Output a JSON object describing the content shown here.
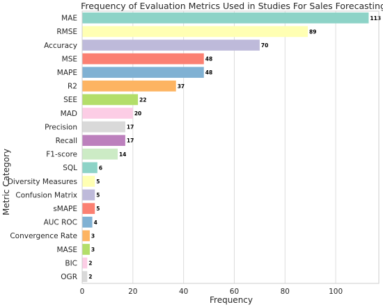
{
  "chart_data": {
    "type": "bar",
    "orientation": "horizontal",
    "title": "Frequency of Evaluation Metrics Used in Studies For Sales Forecasting",
    "xlabel": "Frequency",
    "ylabel": "Metric Category",
    "xlim": [
      0,
      117
    ],
    "xticks": [
      0,
      20,
      40,
      60,
      80,
      100
    ],
    "grid": true,
    "categories": [
      "MAE",
      "RMSE",
      "Accuracy",
      "MSE",
      "MAPE",
      "R2",
      "SEE",
      "MAD",
      "Precision",
      "Recall",
      "F1-score",
      "SQL",
      "Diversity Measures",
      "Confusion Matrix",
      "sMAPE",
      "AUC ROC",
      "Convergence Rate",
      "MASE",
      "BIC",
      "OGR"
    ],
    "values": [
      113,
      89,
      70,
      48,
      48,
      37,
      22,
      20,
      17,
      17,
      14,
      6,
      5,
      5,
      5,
      4,
      3,
      3,
      2,
      2
    ],
    "colors": [
      "#8dd3c7",
      "#ffffb3",
      "#bebada",
      "#fb8072",
      "#80b1d3",
      "#fdb462",
      "#b3de69",
      "#fccde5",
      "#d9d9d9",
      "#bc80bd",
      "#ccebc5",
      "#8dd3c7",
      "#ffffb3",
      "#bebada",
      "#fb8072",
      "#80b1d3",
      "#fdb462",
      "#b3de69",
      "#fccde5",
      "#d9d9d9"
    ]
  }
}
